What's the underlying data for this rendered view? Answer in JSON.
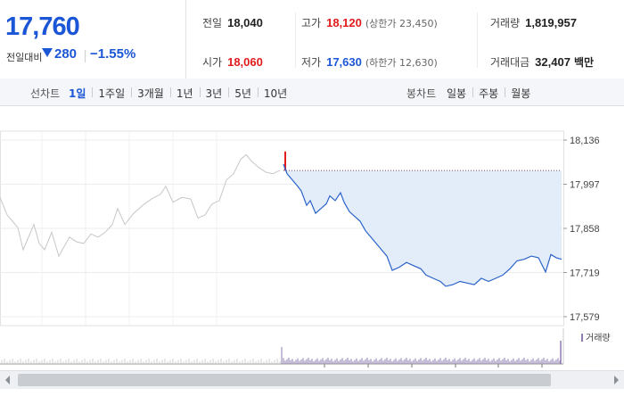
{
  "summary": {
    "current_price": "17,760",
    "prev_day_label": "전일대비",
    "change": "280",
    "change_direction": "down",
    "change_rate": "−1.55%",
    "prev_close": {
      "label": "전일",
      "value": "18,040"
    },
    "open": {
      "label": "시가",
      "value": "18,060"
    },
    "high": {
      "label": "고가",
      "value": "18,120",
      "sub": "(상한가 23,450)"
    },
    "low": {
      "label": "저가",
      "value": "17,630",
      "sub": "(하한가 12,630)"
    },
    "volume": {
      "label": "거래량",
      "value": "1,819,957"
    },
    "amount": {
      "label": "거래대금",
      "value": "32,407",
      "unit": "백만"
    }
  },
  "period_bar": {
    "line_title": "선차트",
    "line_tabs": [
      "1일",
      "1주일",
      "3개월",
      "1년",
      "3년",
      "5년",
      "10년"
    ],
    "line_active": "1일",
    "candle_title": "봉차트",
    "candle_tabs": [
      "일봉",
      "주봉",
      "월봉"
    ]
  },
  "colors": {
    "up": "#e21b1b",
    "down": "#1b56d6",
    "history_line": "#c7c7c7",
    "today_line": "#2a62c9",
    "today_fill": "#e2edf9",
    "volume_bar": "#8e7bb0"
  },
  "chart_data": {
    "type": "line",
    "y_ticks": [
      "18,136",
      "17,997",
      "17,858",
      "17,719",
      "17,579"
    ],
    "ylim": [
      17579,
      18136
    ],
    "grid": true,
    "prev_close_reference": 18040,
    "history_series": [
      [
        0,
        17955
      ],
      [
        8,
        17900
      ],
      [
        14,
        17880
      ],
      [
        20,
        17860
      ],
      [
        26,
        17790
      ],
      [
        32,
        17830
      ],
      [
        38,
        17870
      ],
      [
        44,
        17810
      ],
      [
        50,
        17790
      ],
      [
        58,
        17845
      ],
      [
        66,
        17770
      ],
      [
        72,
        17800
      ],
      [
        78,
        17830
      ],
      [
        86,
        17815
      ],
      [
        94,
        17810
      ],
      [
        102,
        17840
      ],
      [
        110,
        17830
      ],
      [
        118,
        17845
      ],
      [
        126,
        17870
      ],
      [
        132,
        17920
      ],
      [
        140,
        17870
      ],
      [
        150,
        17905
      ],
      [
        160,
        17930
      ],
      [
        170,
        17950
      ],
      [
        180,
        17965
      ],
      [
        186,
        17990
      ],
      [
        194,
        17940
      ],
      [
        204,
        17955
      ],
      [
        214,
        17950
      ],
      [
        222,
        17890
      ],
      [
        230,
        17900
      ],
      [
        238,
        17935
      ],
      [
        246,
        17945
      ],
      [
        254,
        18010
      ],
      [
        262,
        18030
      ],
      [
        270,
        18075
      ],
      [
        276,
        18090
      ],
      [
        282,
        18070
      ],
      [
        290,
        18050
      ],
      [
        298,
        18035
      ],
      [
        306,
        18030
      ],
      [
        314,
        18040
      ]
    ],
    "today_series": [
      [
        318,
        18060
      ],
      [
        322,
        18030
      ],
      [
        328,
        18010
      ],
      [
        334,
        17990
      ],
      [
        338,
        17975
      ],
      [
        344,
        17930
      ],
      [
        348,
        17945
      ],
      [
        354,
        17905
      ],
      [
        360,
        17920
      ],
      [
        366,
        17935
      ],
      [
        370,
        17960
      ],
      [
        376,
        17945
      ],
      [
        382,
        17970
      ],
      [
        386,
        17940
      ],
      [
        392,
        17910
      ],
      [
        398,
        17895
      ],
      [
        404,
        17880
      ],
      [
        410,
        17850
      ],
      [
        416,
        17830
      ],
      [
        422,
        17810
      ],
      [
        428,
        17790
      ],
      [
        434,
        17770
      ],
      [
        440,
        17725
      ],
      [
        448,
        17735
      ],
      [
        456,
        17750
      ],
      [
        464,
        17740
      ],
      [
        472,
        17730
      ],
      [
        478,
        17710
      ],
      [
        486,
        17700
      ],
      [
        494,
        17690
      ],
      [
        500,
        17675
      ],
      [
        508,
        17680
      ],
      [
        516,
        17690
      ],
      [
        524,
        17685
      ],
      [
        532,
        17680
      ],
      [
        540,
        17700
      ],
      [
        548,
        17690
      ],
      [
        556,
        17700
      ],
      [
        564,
        17710
      ],
      [
        572,
        17730
      ],
      [
        580,
        17755
      ],
      [
        588,
        17760
      ],
      [
        596,
        17770
      ],
      [
        604,
        17765
      ],
      [
        612,
        17720
      ],
      [
        618,
        17775
      ],
      [
        624,
        17765
      ],
      [
        630,
        17760
      ]
    ],
    "volume_series": {
      "name": "거래량"
    }
  }
}
